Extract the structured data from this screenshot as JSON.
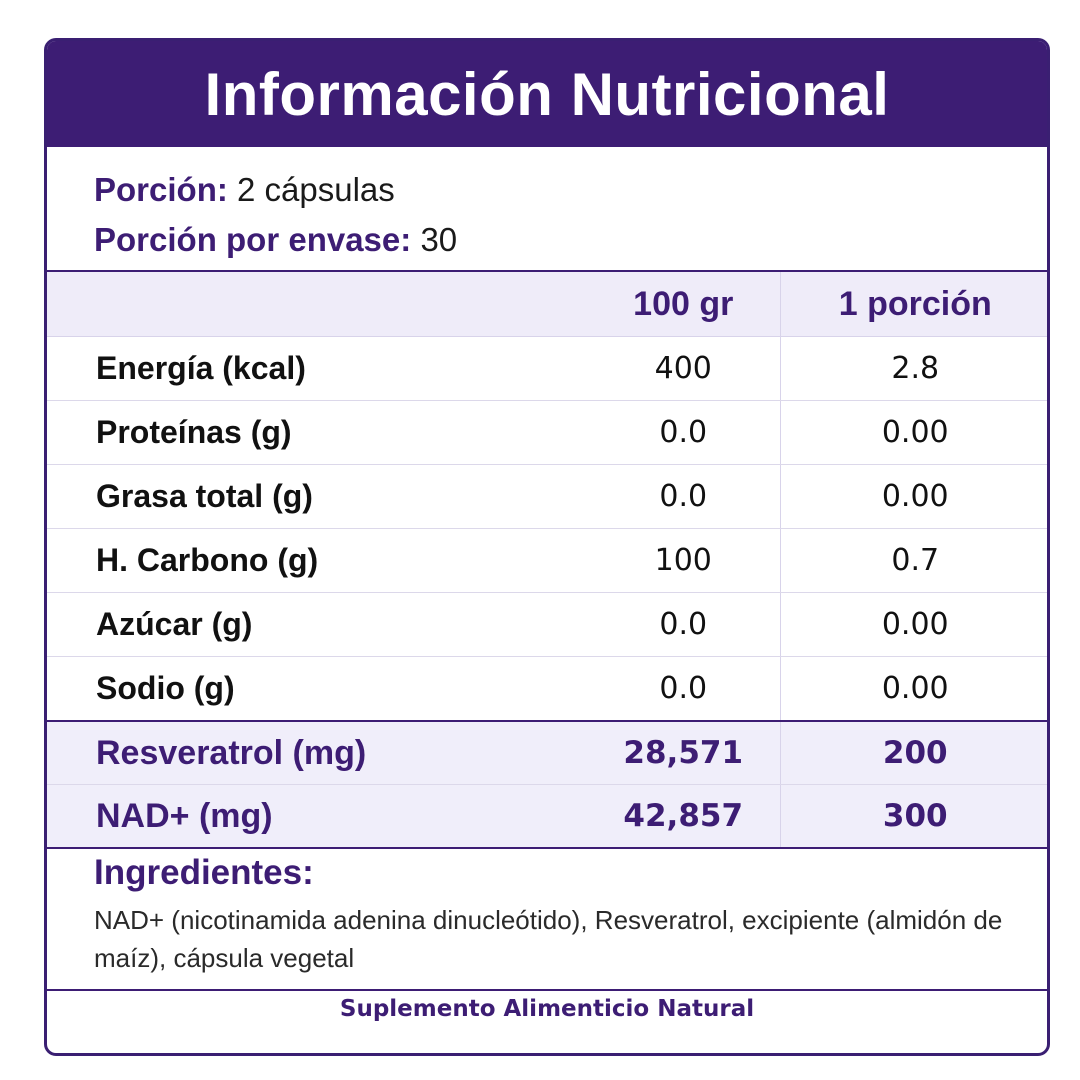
{
  "title": "Información Nutricional",
  "serving": {
    "portion_label": "Porción:",
    "portion_value": "2 cápsulas",
    "per_container_label": "Porción por envase:",
    "per_container_value": "30"
  },
  "table": {
    "headers": [
      "",
      "100 gr",
      "1 porción"
    ],
    "rows": [
      {
        "name": "Energía (kcal)",
        "per100": "400",
        "per_serving": "2.8"
      },
      {
        "name": "Proteínas (g)",
        "per100": "0.0",
        "per_serving": "0.00"
      },
      {
        "name": "Grasa total (g)",
        "per100": "0.0",
        "per_serving": "0.00"
      },
      {
        "name": "H. Carbono (g)",
        "per100": "100",
        "per_serving": "0.7"
      },
      {
        "name": "Azúcar (g)",
        "per100": "0.0",
        "per_serving": "0.00"
      },
      {
        "name": "Sodio (g)",
        "per100": "0.0",
        "per_serving": "0.00"
      }
    ],
    "highlight_rows": [
      {
        "name": "Resveratrol (mg)",
        "per100": "28,571",
        "per_serving": "200"
      },
      {
        "name": "NAD+ (mg)",
        "per100": "42,857",
        "per_serving": "300"
      }
    ]
  },
  "ingredients": {
    "heading": "Ingredientes:",
    "text": "NAD+ (nicotinamida adenina dinucleótido), Resveratrol, excipiente (almidón de maíz), cápsula vegetal"
  },
  "footer": "Suplemento Alimenticio Natural",
  "colors": {
    "brand_purple": "#3d1d74",
    "highlight_bg": "#f0eefa"
  }
}
